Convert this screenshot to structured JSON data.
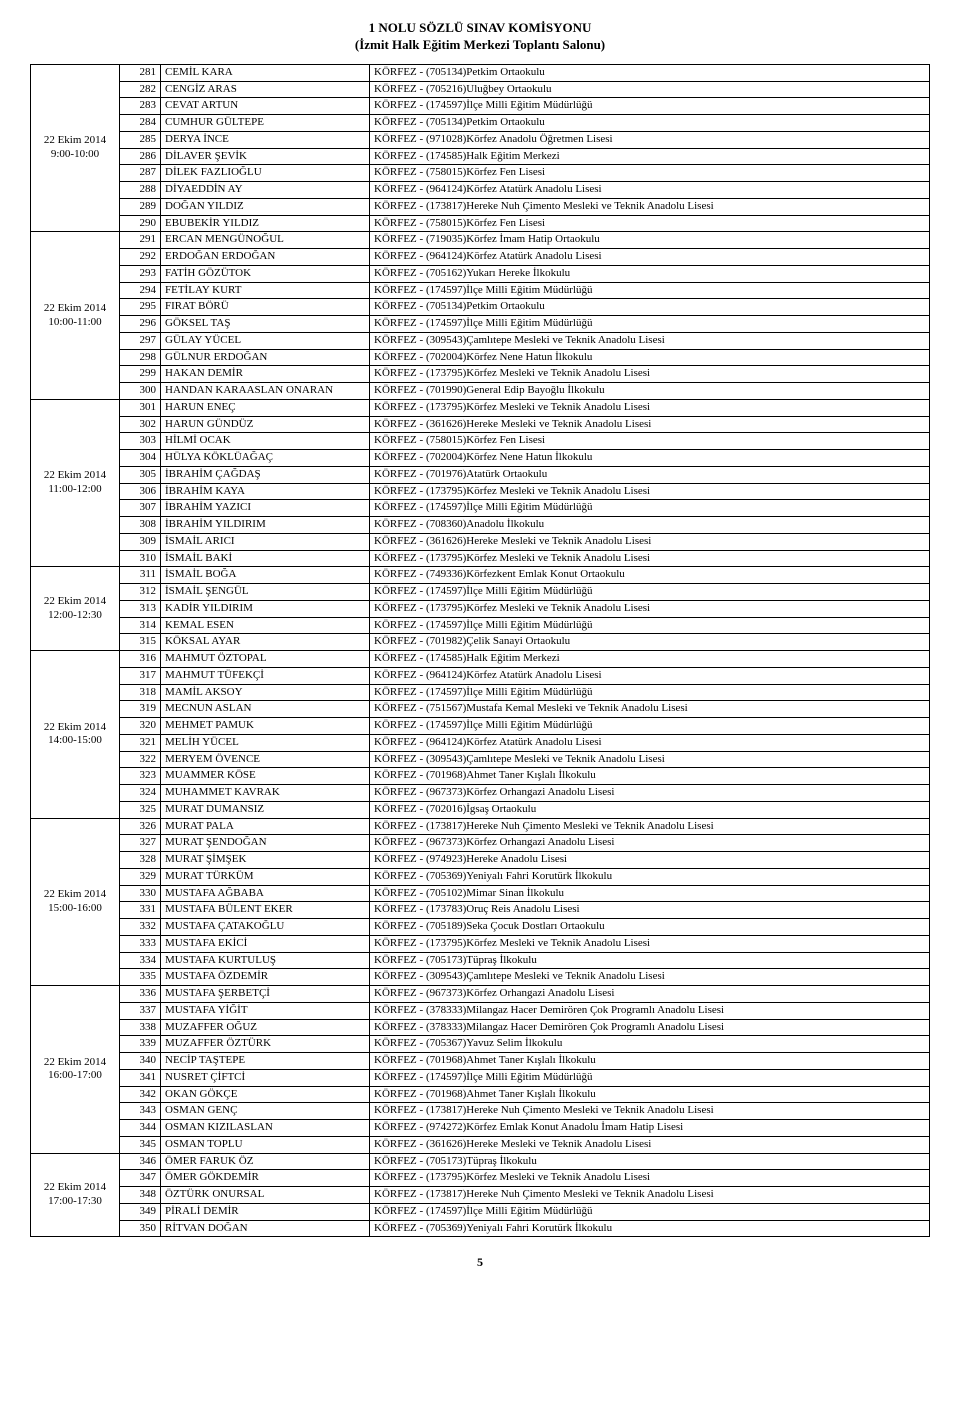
{
  "header": {
    "title1": "1 NOLU SÖZLÜ SINAV KOMİSYONU",
    "title2": "(İzmit Halk Eğitim Merkezi Toplantı Salonu)"
  },
  "pageNumber": "5",
  "blocks": [
    {
      "dateLine1": "22 Ekim 2014",
      "dateLine2": "9:00-10:00",
      "rows": [
        {
          "n": "281",
          "name": "CEMİL KARA",
          "school": "KÖRFEZ - (705134)Petkim Ortaokulu"
        },
        {
          "n": "282",
          "name": "CENGİZ ARAS",
          "school": "KÖRFEZ - (705216)Uluğbey Ortaokulu"
        },
        {
          "n": "283",
          "name": "CEVAT ARTUN",
          "school": "KÖRFEZ - (174597)İlçe Milli Eğitim Müdürlüğü"
        },
        {
          "n": "284",
          "name": "CUMHUR GÜLTEPE",
          "school": "KÖRFEZ - (705134)Petkim Ortaokulu"
        },
        {
          "n": "285",
          "name": "DERYA İNCE",
          "school": "KÖRFEZ - (971028)Körfez Anadolu Öğretmen Lisesi"
        },
        {
          "n": "286",
          "name": "DİLAVER ŞEVİK",
          "school": "KÖRFEZ - (174585)Halk Eğitim Merkezi"
        },
        {
          "n": "287",
          "name": "DİLEK FAZLIOĞLU",
          "school": "KÖRFEZ - (758015)Körfez Fen Lisesi"
        },
        {
          "n": "288",
          "name": "DİYAEDDİN AY",
          "school": "KÖRFEZ - (964124)Körfez Atatürk Anadolu Lisesi"
        },
        {
          "n": "289",
          "name": "DOĞAN YILDIZ",
          "school": "KÖRFEZ - (173817)Hereke Nuh Çimento Mesleki ve Teknik Anadolu Lisesi"
        },
        {
          "n": "290",
          "name": "EBUBEKİR YILDIZ",
          "school": "KÖRFEZ - (758015)Körfez Fen Lisesi"
        }
      ]
    },
    {
      "dateLine1": "22 Ekim 2014",
      "dateLine2": "10:00-11:00",
      "rows": [
        {
          "n": "291",
          "name": "ERCAN MENGÜNOĞUL",
          "school": "KÖRFEZ - (719035)Körfez İmam Hatip Ortaokulu"
        },
        {
          "n": "292",
          "name": "ERDOĞAN ERDOĞAN",
          "school": "KÖRFEZ - (964124)Körfez Atatürk Anadolu Lisesi"
        },
        {
          "n": "293",
          "name": "FATİH GÖZÜTOK",
          "school": "KÖRFEZ - (705162)Yukarı Hereke İlkokulu"
        },
        {
          "n": "294",
          "name": "FETİLAY KURT",
          "school": "KÖRFEZ - (174597)İlçe Milli Eğitim Müdürlüğü"
        },
        {
          "n": "295",
          "name": "FIRAT BÖRÜ",
          "school": "KÖRFEZ - (705134)Petkim Ortaokulu"
        },
        {
          "n": "296",
          "name": "GÖKSEL TAŞ",
          "school": "KÖRFEZ - (174597)İlçe Milli Eğitim Müdürlüğü"
        },
        {
          "n": "297",
          "name": "GÜLAY YÜCEL",
          "school": "KÖRFEZ - (309543)Çamlıtepe Mesleki ve Teknik Anadolu Lisesi"
        },
        {
          "n": "298",
          "name": "GÜLNUR ERDOĞAN",
          "school": "KÖRFEZ - (702004)Körfez Nene Hatun İlkokulu"
        },
        {
          "n": "299",
          "name": "HAKAN DEMİR",
          "school": "KÖRFEZ - (173795)Körfez Mesleki ve Teknik Anadolu Lisesi"
        },
        {
          "n": "300",
          "name": "HANDAN KARAASLAN ONARAN",
          "school": "KÖRFEZ - (701990)General Edip Bayoğlu İlkokulu"
        }
      ]
    },
    {
      "dateLine1": "22 Ekim 2014",
      "dateLine2": "11:00-12:00",
      "rows": [
        {
          "n": "301",
          "name": "HARUN ENEÇ",
          "school": "KÖRFEZ - (173795)Körfez Mesleki ve Teknik Anadolu Lisesi"
        },
        {
          "n": "302",
          "name": "HARUN GÜNDÜZ",
          "school": "KÖRFEZ - (361626)Hereke Mesleki ve Teknik Anadolu Lisesi"
        },
        {
          "n": "303",
          "name": "HİLMİ OCAK",
          "school": "KÖRFEZ - (758015)Körfez Fen Lisesi"
        },
        {
          "n": "304",
          "name": "HÜLYA KÖKLÜAĞAÇ",
          "school": "KÖRFEZ - (702004)Körfez Nene Hatun İlkokulu"
        },
        {
          "n": "305",
          "name": "İBRAHİM ÇAĞDAŞ",
          "school": "KÖRFEZ - (701976)Atatürk Ortaokulu"
        },
        {
          "n": "306",
          "name": "İBRAHİM KAYA",
          "school": "KÖRFEZ - (173795)Körfez Mesleki ve Teknik Anadolu Lisesi"
        },
        {
          "n": "307",
          "name": "İBRAHİM YAZICI",
          "school": "KÖRFEZ - (174597)İlçe Milli Eğitim Müdürlüğü"
        },
        {
          "n": "308",
          "name": "İBRAHİM YILDIRIM",
          "school": "KÖRFEZ - (708360)Anadolu İlkokulu"
        },
        {
          "n": "309",
          "name": "İSMAİL ARICI",
          "school": "KÖRFEZ - (361626)Hereke Mesleki ve Teknik Anadolu Lisesi"
        },
        {
          "n": "310",
          "name": "İSMAİL BAKİ",
          "school": "KÖRFEZ - (173795)Körfez Mesleki ve Teknik Anadolu Lisesi"
        }
      ]
    },
    {
      "dateLine1": "22 Ekim 2014",
      "dateLine2": "12:00-12:30",
      "rows": [
        {
          "n": "311",
          "name": "İSMAİL BOĞA",
          "school": "KÖRFEZ - (749336)Körfezkent Emlak Konut Ortaokulu"
        },
        {
          "n": "312",
          "name": "İSMAİL ŞENGÜL",
          "school": "KÖRFEZ - (174597)İlçe Milli Eğitim Müdürlüğü"
        },
        {
          "n": "313",
          "name": "KADİR YILDIRIM",
          "school": "KÖRFEZ - (173795)Körfez Mesleki ve Teknik Anadolu Lisesi"
        },
        {
          "n": "314",
          "name": "KEMAL ESEN",
          "school": "KÖRFEZ - (174597)İlçe Milli Eğitim Müdürlüğü"
        },
        {
          "n": "315",
          "name": "KÖKSAL AYAR",
          "school": "KÖRFEZ - (701982)Çelik Sanayi Ortaokulu"
        }
      ]
    },
    {
      "dateLine1": "22 Ekim 2014",
      "dateLine2": "14:00-15:00",
      "rows": [
        {
          "n": "316",
          "name": "MAHMUT ÖZTOPAL",
          "school": "KÖRFEZ - (174585)Halk Eğitim Merkezi"
        },
        {
          "n": "317",
          "name": "MAHMUT TÜFEKÇİ",
          "school": "KÖRFEZ - (964124)Körfez Atatürk Anadolu Lisesi"
        },
        {
          "n": "318",
          "name": "MAMİL AKSOY",
          "school": "KÖRFEZ - (174597)İlçe Milli Eğitim Müdürlüğü"
        },
        {
          "n": "319",
          "name": "MECNUN ASLAN",
          "school": "KÖRFEZ - (751567)Mustafa Kemal Mesleki ve Teknik Anadolu Lisesi"
        },
        {
          "n": "320",
          "name": "MEHMET PAMUK",
          "school": "KÖRFEZ - (174597)İlçe Milli Eğitim Müdürlüğü"
        },
        {
          "n": "321",
          "name": "MELİH YÜCEL",
          "school": "KÖRFEZ - (964124)Körfez Atatürk Anadolu Lisesi"
        },
        {
          "n": "322",
          "name": "MERYEM ÖVENCE",
          "school": "KÖRFEZ - (309543)Çamlıtepe Mesleki ve Teknik Anadolu Lisesi"
        },
        {
          "n": "323",
          "name": "MUAMMER KÖSE",
          "school": "KÖRFEZ - (701968)Ahmet Taner Kışlalı İlkokulu"
        },
        {
          "n": "324",
          "name": "MUHAMMET KAVRAK",
          "school": "KÖRFEZ - (967373)Körfez Orhangazi Anadolu Lisesi"
        },
        {
          "n": "325",
          "name": "MURAT DUMANSIZ",
          "school": "KÖRFEZ - (702016)İgsaş Ortaokulu"
        }
      ]
    },
    {
      "dateLine1": "22 Ekim 2014",
      "dateLine2": "15:00-16:00",
      "rows": [
        {
          "n": "326",
          "name": "MURAT PALA",
          "school": "KÖRFEZ - (173817)Hereke Nuh Çimento Mesleki ve Teknik Anadolu Lisesi"
        },
        {
          "n": "327",
          "name": "MURAT ŞENDOĞAN",
          "school": "KÖRFEZ - (967373)Körfez Orhangazi Anadolu Lisesi"
        },
        {
          "n": "328",
          "name": "MURAT ŞİMŞEK",
          "school": "KÖRFEZ - (974923)Hereke Anadolu Lisesi"
        },
        {
          "n": "329",
          "name": "MURAT TÜRKÜM",
          "school": "KÖRFEZ - (705369)Yeniyalı Fahri Korutürk İlkokulu"
        },
        {
          "n": "330",
          "name": "MUSTAFA AĞBABA",
          "school": "KÖRFEZ - (705102)Mimar Sinan İlkokulu"
        },
        {
          "n": "331",
          "name": "MUSTAFA BÜLENT EKER",
          "school": "KÖRFEZ - (173783)Oruç Reis Anadolu Lisesi"
        },
        {
          "n": "332",
          "name": "MUSTAFA ÇATAKOĞLU",
          "school": "KÖRFEZ - (705189)Seka Çocuk Dostları Ortaokulu"
        },
        {
          "n": "333",
          "name": "MUSTAFA EKİCİ",
          "school": "KÖRFEZ - (173795)Körfez Mesleki ve Teknik Anadolu Lisesi"
        },
        {
          "n": "334",
          "name": "MUSTAFA KURTULUŞ",
          "school": "KÖRFEZ - (705173)Tüpraş İlkokulu"
        },
        {
          "n": "335",
          "name": "MUSTAFA ÖZDEMİR",
          "school": "KÖRFEZ - (309543)Çamlıtepe Mesleki ve Teknik Anadolu Lisesi"
        }
      ]
    },
    {
      "dateLine1": "22 Ekim 2014",
      "dateLine2": "16:00-17:00",
      "rows": [
        {
          "n": "336",
          "name": "MUSTAFA ŞERBETÇİ",
          "school": "KÖRFEZ - (967373)Körfez Orhangazi Anadolu Lisesi"
        },
        {
          "n": "337",
          "name": "MUSTAFA YİĞİT",
          "school": "KÖRFEZ - (378333)Milangaz Hacer Demirören Çok Programlı Anadolu Lisesi"
        },
        {
          "n": "338",
          "name": "MUZAFFER OĞUZ",
          "school": "KÖRFEZ - (378333)Milangaz Hacer Demirören Çok Programlı Anadolu Lisesi"
        },
        {
          "n": "339",
          "name": "MUZAFFER ÖZTÜRK",
          "school": "KÖRFEZ - (705367)Yavuz Selim İlkokulu"
        },
        {
          "n": "340",
          "name": "NECİP TAŞTEPE",
          "school": "KÖRFEZ - (701968)Ahmet Taner Kışlalı İlkokulu"
        },
        {
          "n": "341",
          "name": "NUSRET ÇİFTCİ",
          "school": "KÖRFEZ - (174597)İlçe Milli Eğitim Müdürlüğü"
        },
        {
          "n": "342",
          "name": "OKAN GÖKÇE",
          "school": "KÖRFEZ - (701968)Ahmet Taner Kışlalı İlkokulu"
        },
        {
          "n": "343",
          "name": "OSMAN GENÇ",
          "school": "KÖRFEZ - (173817)Hereke Nuh Çimento Mesleki ve Teknik Anadolu Lisesi"
        },
        {
          "n": "344",
          "name": "OSMAN KIZILASLAN",
          "school": "KÖRFEZ - (974272)Körfez Emlak Konut Anadolu İmam Hatip Lisesi"
        },
        {
          "n": "345",
          "name": "OSMAN TOPLU",
          "school": "KÖRFEZ - (361626)Hereke Mesleki ve Teknik Anadolu Lisesi"
        }
      ]
    },
    {
      "dateLine1": "22 Ekim 2014",
      "dateLine2": "17:00-17:30",
      "rows": [
        {
          "n": "346",
          "name": "ÖMER FARUK ÖZ",
          "school": "KÖRFEZ - (705173)Tüpraş İlkokulu"
        },
        {
          "n": "347",
          "name": "ÖMER GÖKDEMİR",
          "school": "KÖRFEZ - (173795)Körfez Mesleki ve Teknik Anadolu Lisesi"
        },
        {
          "n": "348",
          "name": "ÖZTÜRK ONURSAL",
          "school": "KÖRFEZ - (173817)Hereke Nuh Çimento Mesleki ve Teknik Anadolu Lisesi"
        },
        {
          "n": "349",
          "name": "PİRALİ DEMİR",
          "school": "KÖRFEZ - (174597)İlçe Milli Eğitim Müdürlüğü"
        },
        {
          "n": "350",
          "name": "RİTVAN DOĞAN",
          "school": "KÖRFEZ - (705369)Yeniyalı Fahri Korutürk İlkokulu"
        }
      ]
    }
  ]
}
